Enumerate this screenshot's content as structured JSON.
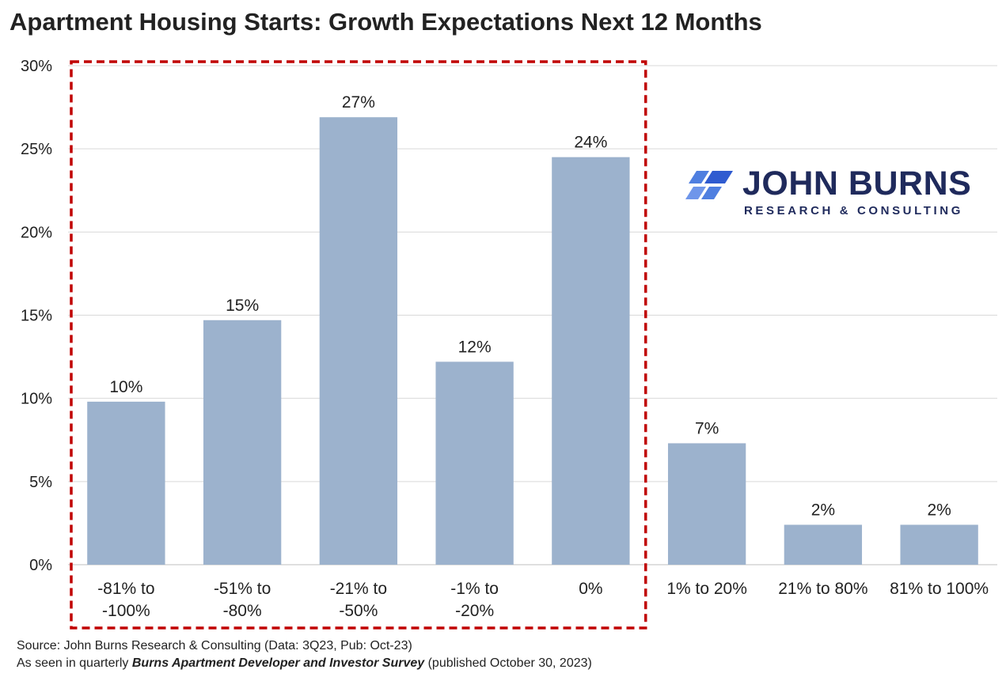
{
  "chart_data": {
    "type": "bar",
    "title": "Apartment Housing Starts: Growth Expectations Next 12 Months",
    "categories": [
      [
        "-81% to",
        "-100%"
      ],
      [
        "-51% to",
        "-80%"
      ],
      [
        "-21% to",
        "-50%"
      ],
      [
        "-1% to",
        "-20%"
      ],
      [
        "0%"
      ],
      [
        "1% to 20%"
      ],
      [
        "21% to 80%"
      ],
      [
        "81% to 100%"
      ]
    ],
    "values": [
      9.8,
      14.7,
      26.9,
      12.2,
      24.5,
      7.3,
      2.4,
      2.4
    ],
    "data_labels": [
      "10%",
      "15%",
      "27%",
      "12%",
      "24%",
      "7%",
      "2%",
      "2%"
    ],
    "ylim": [
      0,
      30
    ],
    "yticks": [
      0,
      5,
      10,
      15,
      20,
      25,
      30
    ],
    "ytick_labels": [
      "0%",
      "5%",
      "10%",
      "15%",
      "20%",
      "25%",
      "30%"
    ],
    "xlabel": "",
    "ylabel": "",
    "grid": true,
    "highlight_box_categories": [
      0,
      4
    ],
    "colors": {
      "bar": "#9cb2cd",
      "grid": "#d9d9d9",
      "highlight": "#c00000"
    }
  },
  "logo": {
    "main": "JOHN BURNS",
    "sub": "RESEARCH & CONSULTING",
    "color": "#1f2a5c",
    "mark_color": "#4f7fe0"
  },
  "source": {
    "line1": "Source: John Burns Research & Consulting (Data: 3Q23, Pub: Oct-23)",
    "line2_prefix": "As seen in quarterly ",
    "line2_bold": "Burns Apartment Developer and Investor Survey",
    "line2_suffix": " (published October 30, 2023)"
  }
}
